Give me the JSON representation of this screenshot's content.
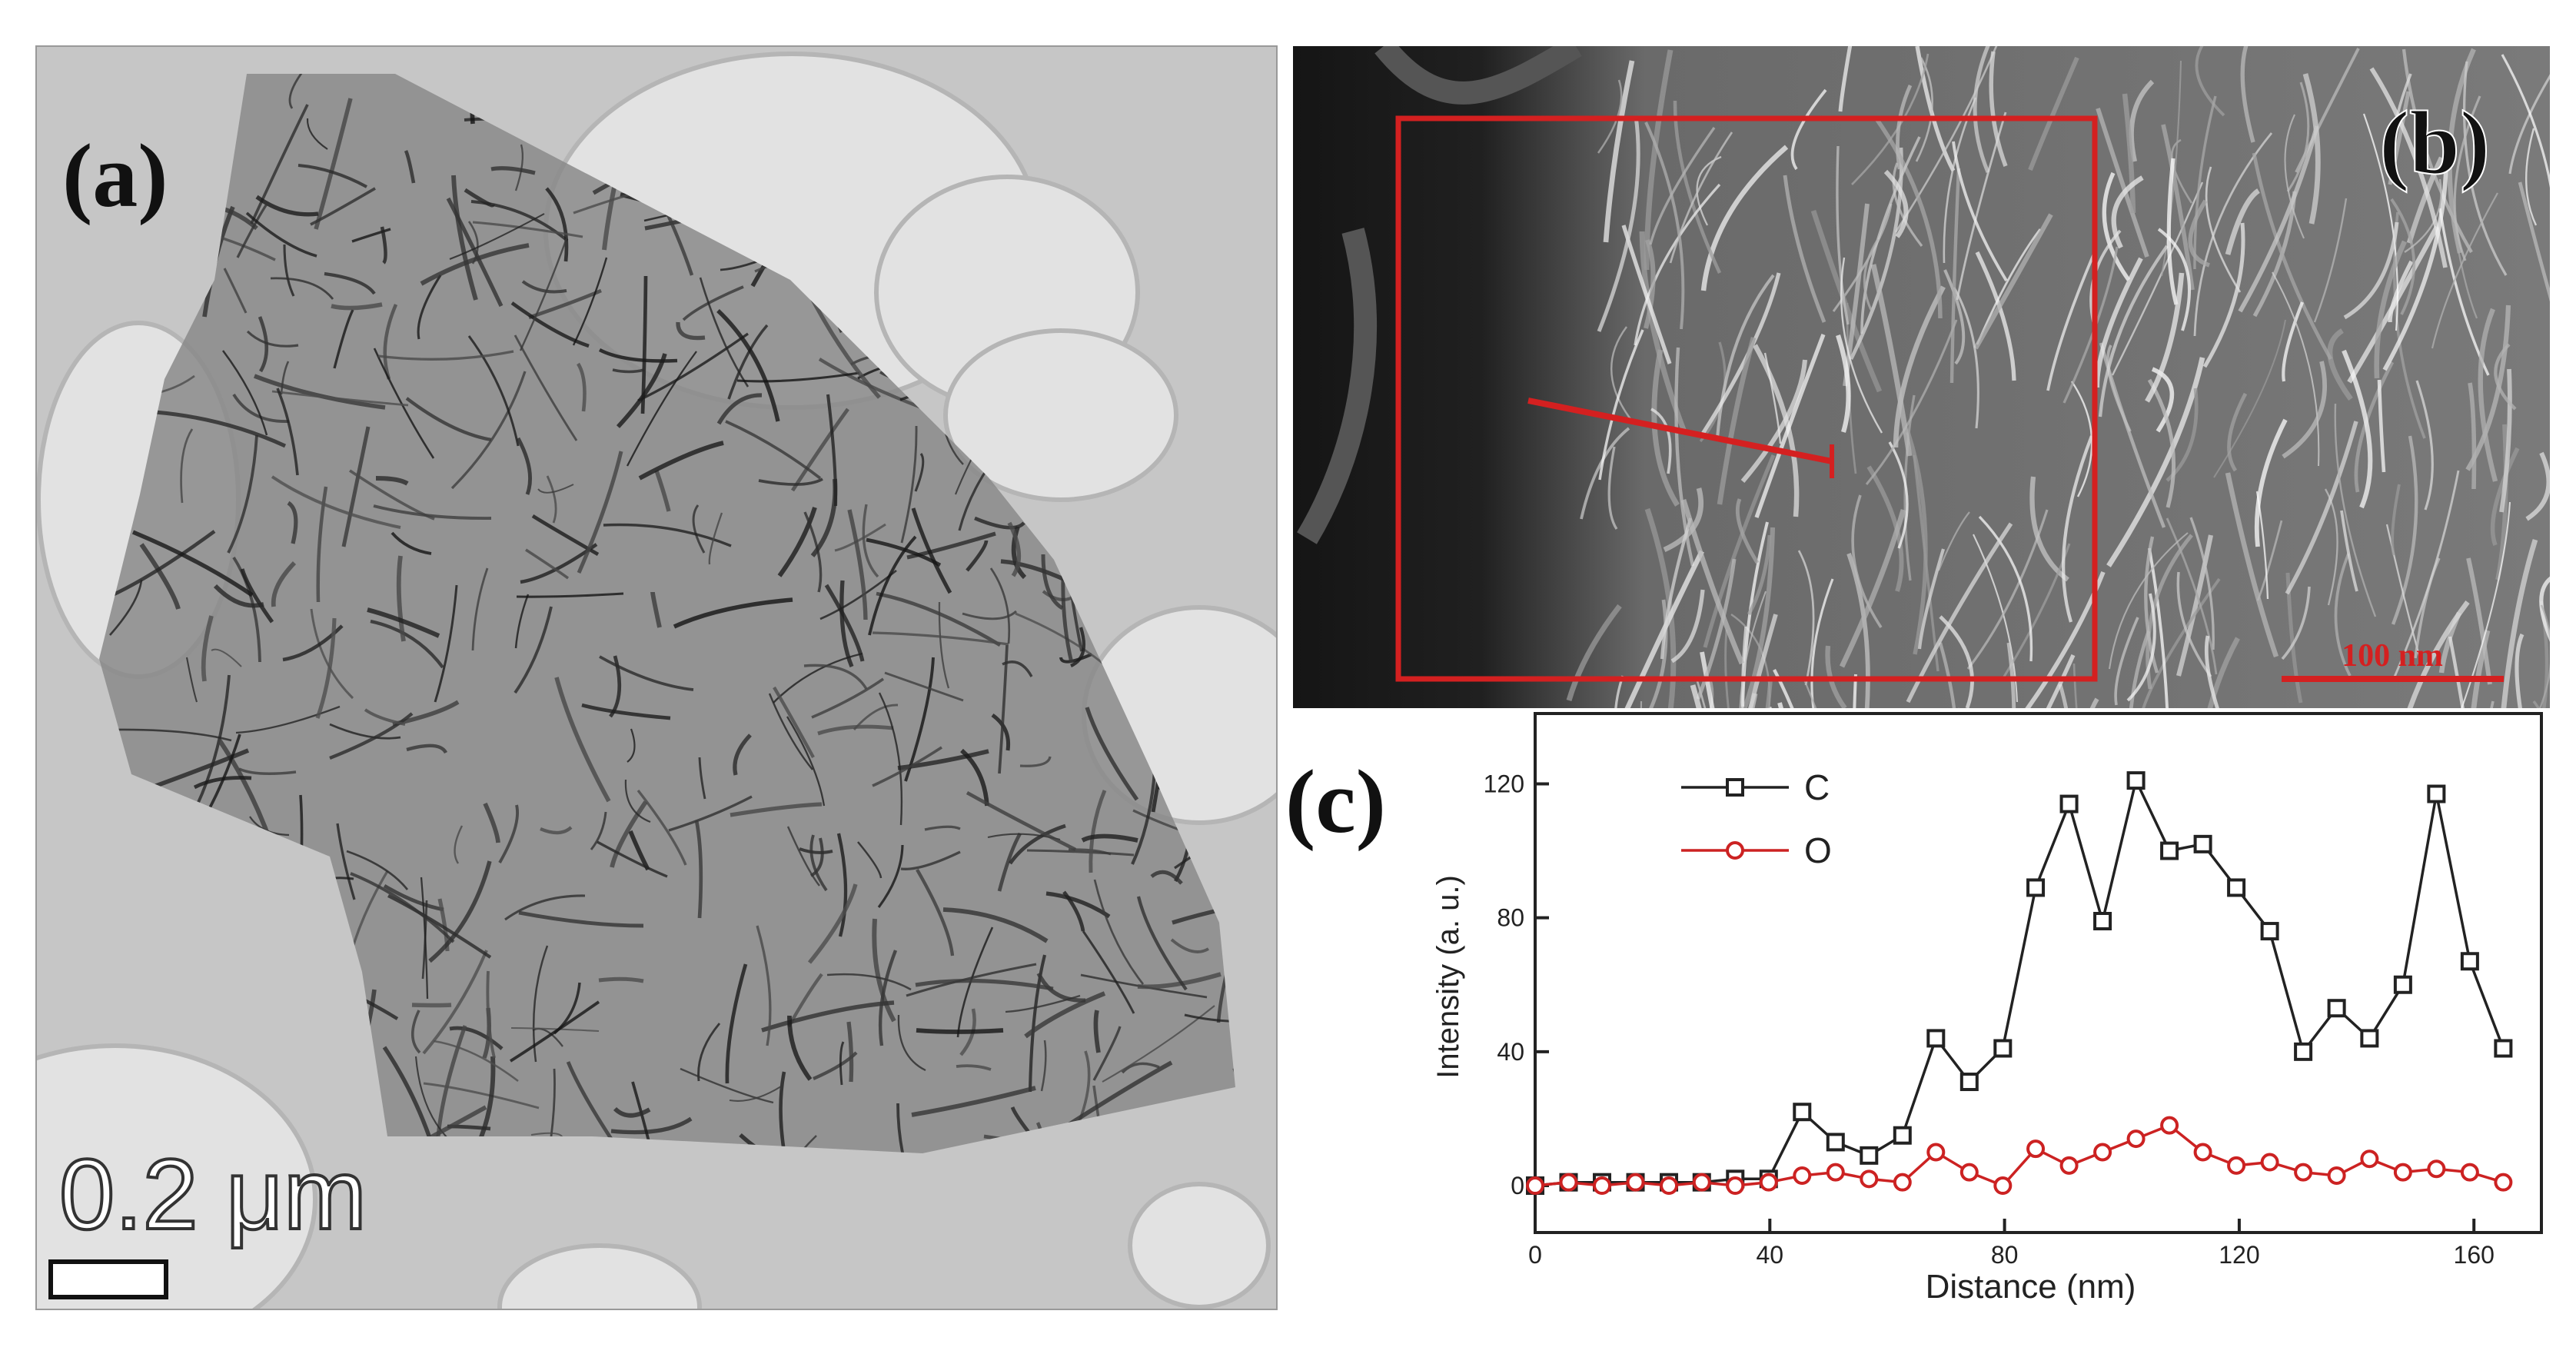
{
  "panels": {
    "a": {
      "label": "(a)",
      "scale_bar": "0.2 μm"
    },
    "b": {
      "label": "(b)",
      "scale_bar": "100 nm"
    },
    "c": {
      "label": "(c)"
    }
  },
  "chart_data": {
    "type": "line",
    "x": [
      0,
      5.7,
      11.4,
      17.1,
      22.8,
      28.4,
      34.1,
      39.8,
      45.5,
      51.2,
      56.9,
      62.6,
      68.3,
      74,
      79.7,
      85.3,
      91,
      96.7,
      102.4,
      108.1,
      113.8,
      119.5,
      125.2,
      130.9,
      136.6,
      142.2,
      147.9,
      153.6,
      159.3,
      165
    ],
    "series": [
      {
        "name": "C",
        "color": "#222222",
        "marker": "square",
        "values": [
          0,
          1,
          1,
          1,
          1,
          1,
          2,
          2,
          22,
          13,
          9,
          15,
          44,
          31,
          41,
          89,
          114,
          79,
          121,
          100,
          102,
          89,
          76,
          40,
          53,
          44,
          60,
          117,
          67,
          41
        ]
      },
      {
        "name": "O",
        "color": "#cc2222",
        "marker": "circle",
        "values": [
          0,
          1,
          0,
          1,
          0,
          1,
          0,
          1,
          3,
          4,
          2,
          1,
          10,
          4,
          0,
          11,
          6,
          10,
          14,
          18,
          10,
          6,
          7,
          4,
          3,
          8,
          4,
          5,
          4,
          1
        ]
      }
    ],
    "xlim": [
      0,
      171.5
    ],
    "ylim": [
      -14,
      141
    ],
    "xticks": [
      0,
      40,
      80,
      120,
      160
    ],
    "yticks": [
      0,
      40,
      80,
      120
    ],
    "x_label": "Distance (nm)",
    "y_label": "Intensity (a. u.)",
    "legend": "upper left"
  }
}
